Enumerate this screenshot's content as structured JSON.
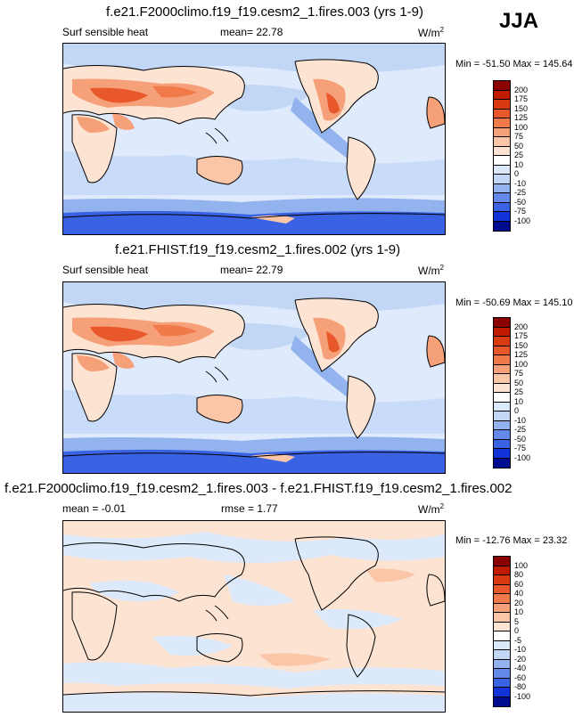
{
  "season": "JJA",
  "panels": [
    {
      "title": "f.e21.F2000climo.f19_f19.cesm2_1.fires.003 (yrs 1-9)",
      "variable": "Surf sensible heat",
      "stat1_label": "mean=",
      "stat1_value": "22.78",
      "units": "W/m",
      "units_sup": "2",
      "minmax": "Min = -51.50 Max = 145.64",
      "colorbar_levels": [
        "200",
        "175",
        "150",
        "125",
        "100",
        "75",
        "50",
        "25",
        "10",
        "0",
        "-10",
        "-25",
        "-50",
        "-75",
        "-100"
      ]
    },
    {
      "title": "f.e21.FHIST.f19_f19.cesm2_1.fires.002 (yrs 1-9)",
      "variable": "Surf sensible heat",
      "stat1_label": "mean=",
      "stat1_value": "22.79",
      "units": "W/m",
      "units_sup": "2",
      "minmax": "Min = -50.69 Max = 145.10",
      "colorbar_levels": [
        "200",
        "175",
        "150",
        "125",
        "100",
        "75",
        "50",
        "25",
        "10",
        "0",
        "-10",
        "-25",
        "-50",
        "-75",
        "-100"
      ]
    },
    {
      "title": "f.e21.F2000climo.f19_f19.cesm2_1.fires.003 - f.e21.FHIST.f19_f19.cesm2_1.fires.002",
      "stat1_label": "mean =",
      "stat1_value": "-0.01",
      "stat2_label": "rmse =",
      "stat2_value": "1.77",
      "units": "W/m",
      "units_sup": "2",
      "minmax": "Min = -12.76 Max = 23.32",
      "colorbar_levels": [
        "100",
        "80",
        "60",
        "40",
        "20",
        "10",
        "5",
        "0",
        "-5",
        "-10",
        "-20",
        "-40",
        "-60",
        "-80",
        "-100"
      ]
    }
  ],
  "colors": {
    "colorbar": [
      "#8b0000",
      "#c01a00",
      "#d93a10",
      "#e8582a",
      "#f07a4a",
      "#f6a07a",
      "#fbc6a8",
      "#fde3d2",
      "#ffffff",
      "#dce9fb",
      "#c2d7f6",
      "#93b3ef",
      "#6489ea",
      "#3a63e4",
      "#1233d8",
      "#000c8f"
    ],
    "land_contour": "#000000",
    "ocean_base": "#dfeafd"
  }
}
